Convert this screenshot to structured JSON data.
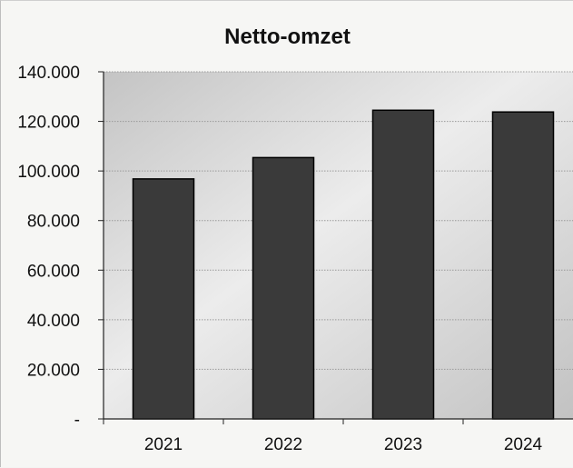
{
  "chart_data": {
    "type": "bar",
    "title": "Netto-omzet",
    "categories": [
      "2021",
      "2022",
      "2023",
      "2024"
    ],
    "values": [
      96800,
      105400,
      124500,
      123800
    ],
    "ylim": [
      0,
      140000
    ],
    "yticks": [
      0,
      20000,
      40000,
      60000,
      80000,
      100000,
      120000,
      140000
    ],
    "ytick_labels": [
      "-",
      "20.000",
      "40.000",
      "60.000",
      "80.000",
      "100.000",
      "120.000",
      "140.000"
    ],
    "xlabel": "",
    "ylabel": "",
    "grid": true,
    "legend": "none",
    "colors": {
      "bar": "#3a3a3a",
      "bar_edge": "#000000"
    }
  }
}
